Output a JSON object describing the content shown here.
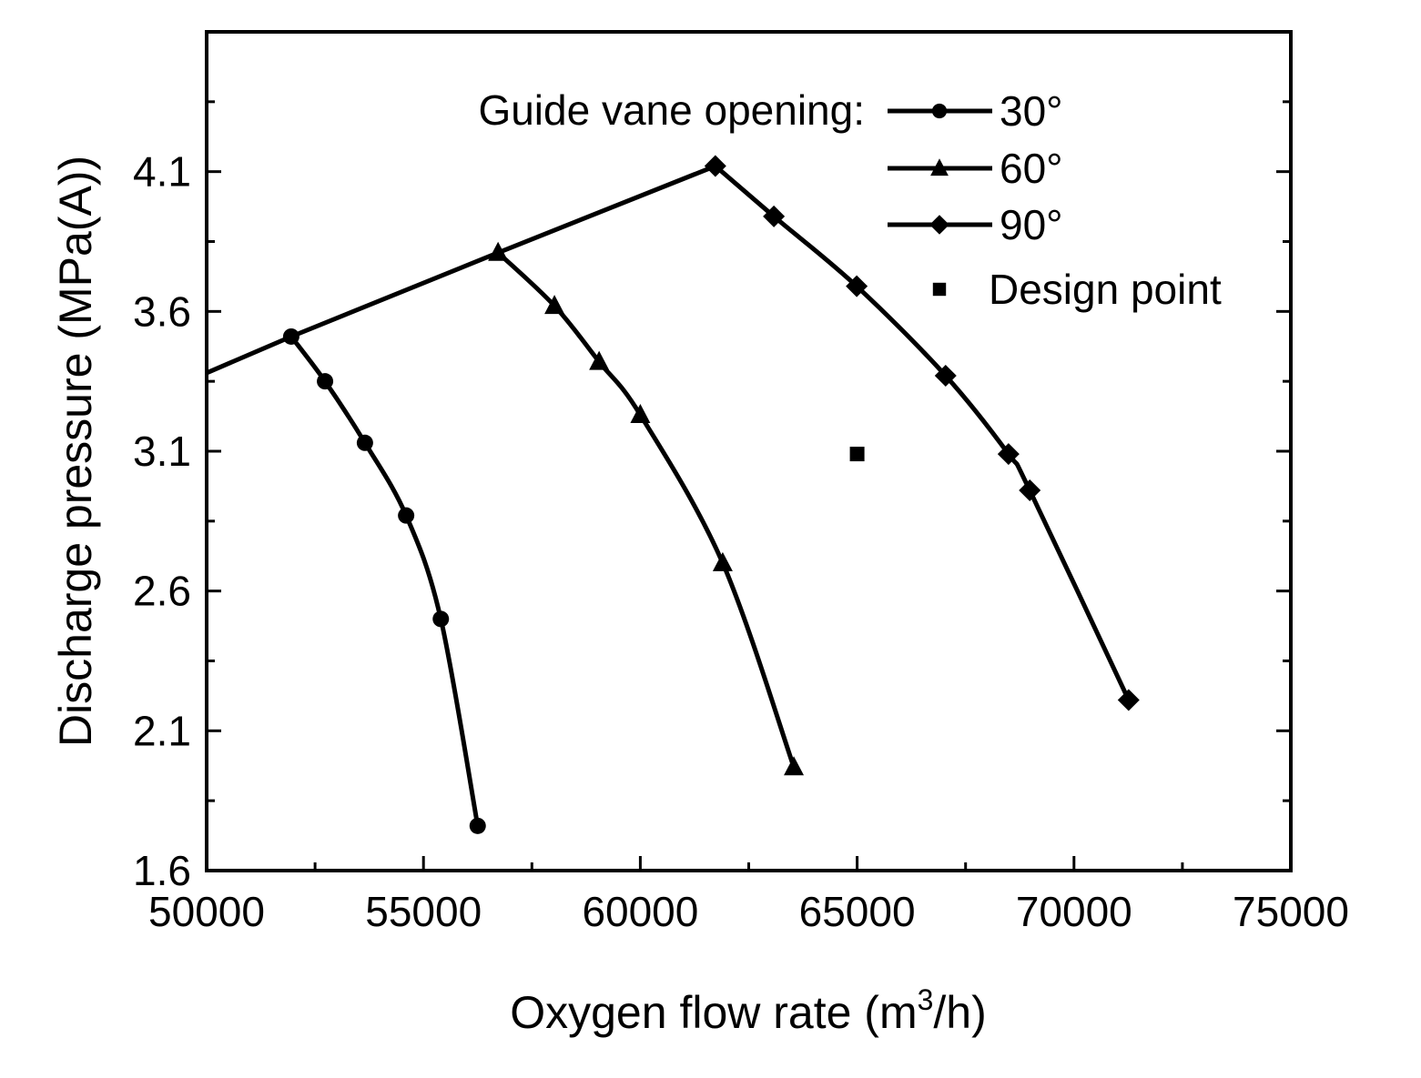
{
  "chart_data": {
    "type": "line",
    "title": "",
    "xlabel": "Oxygen flow rate (m",
    "xlabel_sup": "3",
    "xlabel_tail": "/h)",
    "ylabel": "Discharge pressure (MPa(A))",
    "xlim": [
      50000,
      75000
    ],
    "ylim": [
      1.6,
      4.6
    ],
    "xticks": [
      50000,
      55000,
      60000,
      65000,
      70000,
      75000
    ],
    "xtick_labels": [
      "50000",
      "55000",
      "60000",
      "65000",
      "70000",
      "75000"
    ],
    "yticks": [
      1.6,
      2.1,
      2.6,
      3.1,
      3.6,
      4.1
    ],
    "ytick_labels": [
      "1.6",
      "2.1",
      "2.6",
      "3.1",
      "3.6",
      "4.1"
    ],
    "grid": false,
    "legend_title": "Guide vane opening:",
    "legend_position": "top-right",
    "series": [
      {
        "name": "30°",
        "marker": "circle",
        "x": [
          51950,
          52730,
          53650,
          54600,
          55400,
          56250
        ],
        "y": [
          3.51,
          3.35,
          3.13,
          2.87,
          2.5,
          1.76
        ]
      },
      {
        "name": "60°",
        "marker": "triangle",
        "x": [
          56720,
          58020,
          59050,
          60000,
          61900,
          63540
        ],
        "y": [
          3.81,
          3.62,
          3.42,
          3.23,
          2.7,
          1.97
        ]
      },
      {
        "name": "90°",
        "marker": "diamond",
        "x": [
          61730,
          63080,
          64990,
          67040,
          68490,
          68980,
          71260
        ],
        "y": [
          4.12,
          3.94,
          3.69,
          3.37,
          3.09,
          2.96,
          2.21
        ]
      },
      {
        "name": "Design point",
        "marker": "square",
        "x": [
          65000
        ],
        "y": [
          3.09
        ]
      }
    ],
    "surge_line": {
      "x": [
        50000,
        51950,
        56720,
        61730
      ],
      "y": [
        3.38,
        3.51,
        3.81,
        4.12
      ]
    },
    "color": "#000000"
  }
}
